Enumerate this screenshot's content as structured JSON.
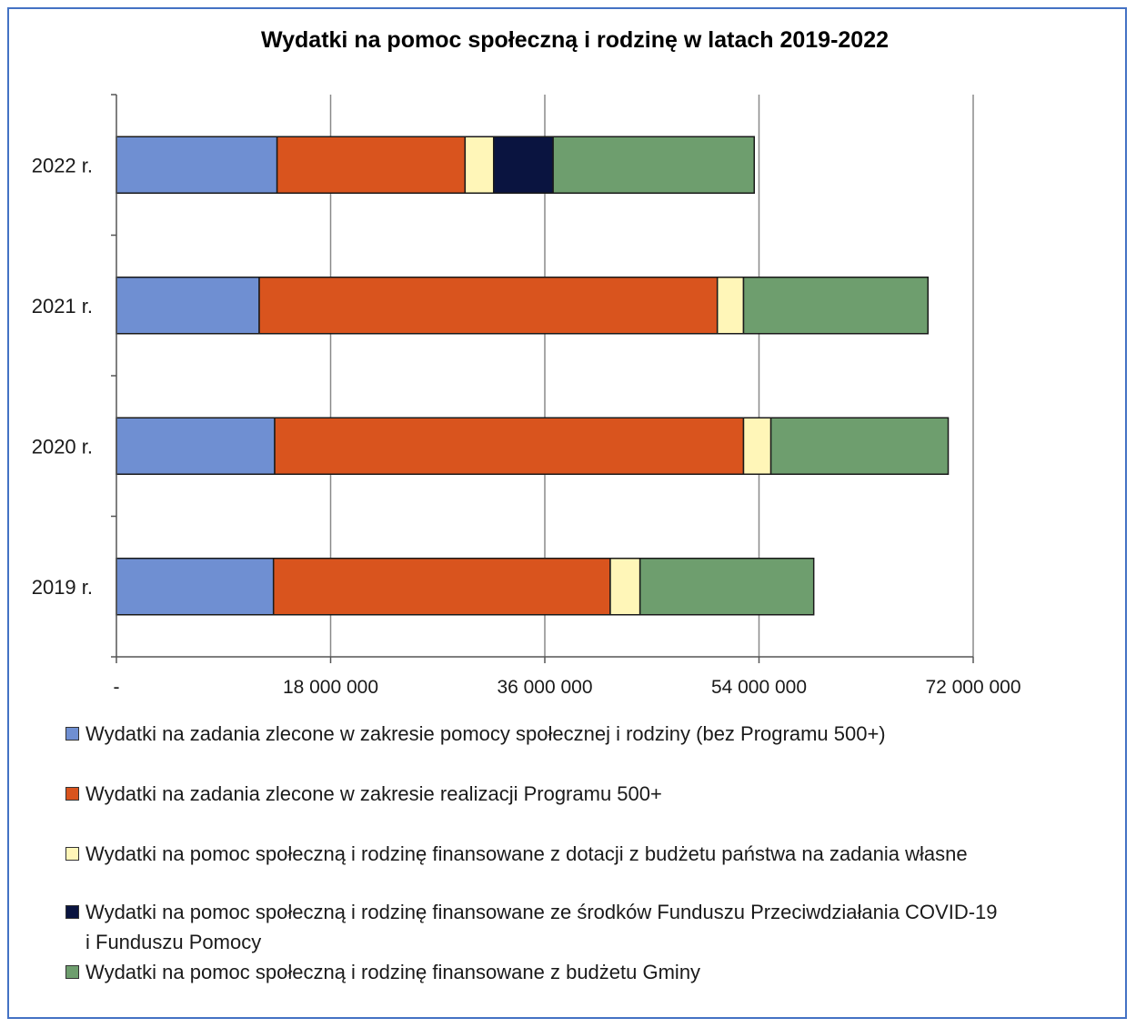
{
  "chart_data": {
    "type": "bar",
    "orientation": "horizontal",
    "stacked": true,
    "title": "Wydatki na pomoc społeczną i rodzinę w latach 2019-2022",
    "categories": [
      "2022 r.",
      "2021 r.",
      "2020 r.",
      "2019 r."
    ],
    "xlim": [
      0,
      72000000
    ],
    "x_ticks": [
      {
        "value": 0,
        "label": "-"
      },
      {
        "value": 18000000,
        "label": "18 000 000"
      },
      {
        "value": 36000000,
        "label": "36 000 000"
      },
      {
        "value": 54000000,
        "label": "54 000 000"
      },
      {
        "value": 72000000,
        "label": "72 000 000"
      }
    ],
    "grid": true,
    "legend_position": "bottom",
    "series": [
      {
        "name": "Wydatki na zadania zlecone w zakresie pomocy społecznej i rodziny (bez Programu 500+)",
        "color": "#6f8fd2",
        "values": [
          13500000,
          12000000,
          13300000,
          13200000
        ]
      },
      {
        "name": "Wydatki na zadania zlecone w zakresie realizacji Programu 500+",
        "color": "#d9541e",
        "values": [
          15800000,
          38500000,
          39400000,
          28300000
        ]
      },
      {
        "name": "Wydatki na pomoc społeczną i rodzinę finansowane z dotacji z budżetu państwa na zadania własne",
        "color": "#fff6b8",
        "values": [
          2400000,
          2200000,
          2300000,
          2500000
        ]
      },
      {
        "name": "Wydatki na pomoc społeczną i rodzinę finansowane ze środków Funduszu Przeciwdziałania COVID-19 i Funduszu Pomocy",
        "color": "#0a1440",
        "values": [
          5000000,
          0,
          0,
          0
        ]
      },
      {
        "name": "Wydatki na pomoc społeczną i rodzinę finansowane z budżetu Gminy",
        "color": "#6e9e6e",
        "values": [
          16900000,
          15500000,
          14900000,
          14600000
        ]
      }
    ]
  },
  "legend": {
    "line1": "Wydatki na zadania zlecone w zakresie pomocy społecznej i rodziny (bez Programu 500+)",
    "line2": "Wydatki na zadania zlecone w zakresie realizacji Programu 500+",
    "line3": "Wydatki na pomoc społeczną i rodzinę finansowane z dotacji z budżetu państwa na zadania własne",
    "line4a": "Wydatki na pomoc społeczną i rodzinę finansowane ze środków Funduszu Przeciwdziałania COVID-19",
    "line4b": "i Funduszu Pomocy",
    "line5": "Wydatki na pomoc społeczną i rodzinę finansowane z budżetu Gminy"
  }
}
